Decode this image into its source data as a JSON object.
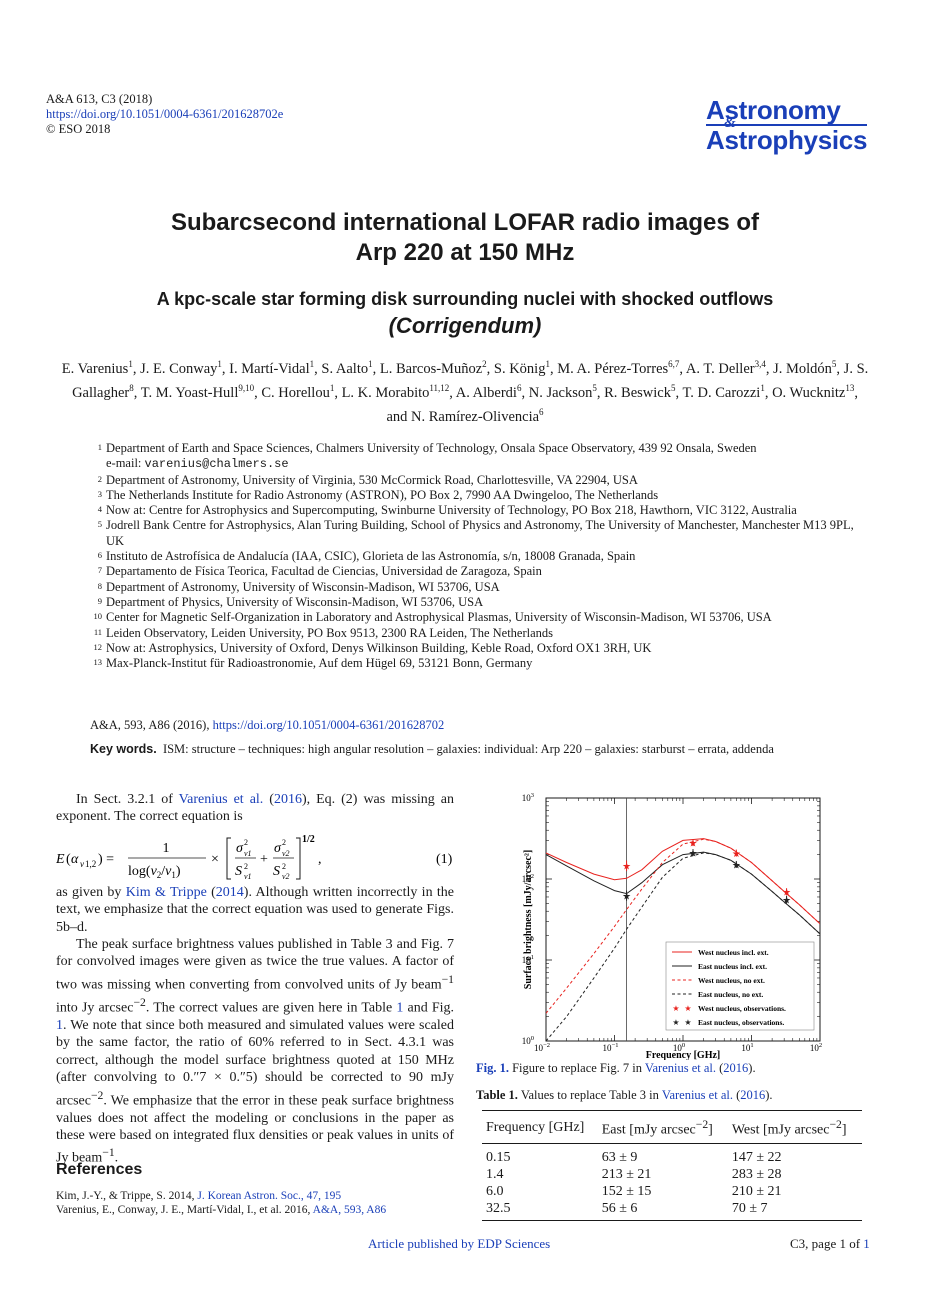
{
  "header": {
    "journal_ref": "A&A 613,  C3 (2018)",
    "doi": "https://doi.org/10.1051/0004-6361/201628702e",
    "copyright": "© ESO 2018",
    "logo_line1": "Astronomy",
    "logo_amp": "&",
    "logo_line2": "Astrophysics"
  },
  "title_line1": "Subarcsecond international LOFAR radio images of",
  "title_line2": "Arp 220 at 150 MHz",
  "subtitle": "A kpc-scale star forming disk surrounding nuclei with shocked outflows",
  "corrigendum": "(Corrigendum)",
  "authors": [
    {
      "name": "E. Varenius",
      "aff": "1"
    },
    {
      "name": "J. E. Conway",
      "aff": "1"
    },
    {
      "name": "I. Martí-Vidal",
      "aff": "1"
    },
    {
      "name": "S. Aalto",
      "aff": "1"
    },
    {
      "name": "L. Barcos-Muñoz",
      "aff": "2"
    },
    {
      "name": "S. König",
      "aff": "1"
    },
    {
      "name": "M. A. Pérez-Torres",
      "aff": "6,7"
    },
    {
      "name": "A. T. Deller",
      "aff": "3,4"
    },
    {
      "name": "J. Moldón",
      "aff": "5"
    },
    {
      "name": "J. S. Gallagher",
      "aff": "8"
    },
    {
      "name": "T. M. Yoast-Hull",
      "aff": "9,10"
    },
    {
      "name": "C. Horellou",
      "aff": "1"
    },
    {
      "name": "L. K. Morabito",
      "aff": "11,12"
    },
    {
      "name": "A. Alberdi",
      "aff": "6"
    },
    {
      "name": "N. Jackson",
      "aff": "5"
    },
    {
      "name": "R. Beswick",
      "aff": "5"
    },
    {
      "name": "T. D. Carozzi",
      "aff": "1"
    },
    {
      "name": "O. Wucknitz",
      "aff": "13"
    },
    {
      "name": "N. Ramírez-Olivencia",
      "aff": "6"
    }
  ],
  "authors_and": "and",
  "affiliations": [
    {
      "num": "1",
      "text": "Department of Earth and Space Sciences, Chalmers University of Technology, Onsala Space Observatory, 439 92 Onsala, Sweden",
      "email_label": "e-mail:",
      "email": "varenius@chalmers.se"
    },
    {
      "num": "2",
      "text": "Department of Astronomy, University of Virginia, 530 McCormick Road, Charlottesville, VA 22904, USA"
    },
    {
      "num": "3",
      "text": "The Netherlands Institute for Radio Astronomy (ASTRON), PO Box 2, 7990 AA Dwingeloo, The Netherlands"
    },
    {
      "num": "4",
      "text": "Now at: Centre for Astrophysics and Supercomputing, Swinburne University of Technology, PO Box 218, Hawthorn, VIC 3122, Australia"
    },
    {
      "num": "5",
      "text": "Jodrell Bank Centre for Astrophysics, Alan Turing Building, School of Physics and Astronomy, The University of Manchester, Manchester M13 9PL, UK"
    },
    {
      "num": "6",
      "text": "Instituto de Astrofísica de Andalucía (IAA, CSIC), Glorieta de las Astronomía, s/n, 18008 Granada, Spain"
    },
    {
      "num": "7",
      "text": "Departamento de Física Teorica, Facultad de Ciencias, Universidad de Zaragoza, Spain"
    },
    {
      "num": "8",
      "text": "Department of Astronomy, University of Wisconsin-Madison, WI 53706, USA"
    },
    {
      "num": "9",
      "text": "Department of Physics, University of Wisconsin-Madison, WI 53706, USA"
    },
    {
      "num": "10",
      "text": "Center for Magnetic Self-Organization in Laboratory and Astrophysical Plasmas, University of Wisconsin-Madison, WI 53706, USA"
    },
    {
      "num": "11",
      "text": "Leiden Observatory, Leiden University, PO Box 9513, 2300 RA Leiden, The Netherlands"
    },
    {
      "num": "12",
      "text": "Now at: Astrophysics, University of Oxford, Denys Wilkinson Building, Keble Road, Oxford OX1 3RH, UK"
    },
    {
      "num": "13",
      "text": "Max-Planck-Institut für Radioastronomie, Auf dem Hügel 69, 53121 Bonn, Germany"
    }
  ],
  "original_ref": {
    "text": "A&A, 593, A86 (2016), ",
    "link": "https://doi.org/10.1051/0004-6361/201628702"
  },
  "keywords": {
    "label": "Key words.",
    "text": "ISM: structure – techniques: high angular resolution – galaxies: individual: Arp 220 – galaxies: starburst – errata, addenda"
  },
  "body": {
    "p1_a": "In Sect. 3.2.1 of ",
    "p1_link": "Varenius et al.",
    "p1_paren_open": " (",
    "p1_year": "2016",
    "p1_b": "), Eq. (2) was missing an exponent. The correct equation is",
    "eq_number": "(1)",
    "p2_a": "as given by ",
    "p2_link": "Kim & Trippe",
    "p2_paren_open": " (",
    "p2_year": "2014",
    "p2_b": "). Although written incorrectly in the text, we emphasize that the correct equation was used to generate Figs. 5b–d.",
    "p3_a": "The peak surface brightness values published in Table 3 and Fig. 7 for convolved images were given as twice the true values. A factor of two was missing when converting from convolved units of Jy beam",
    "p3_b": " into Jy arcsec",
    "p3_c": ". The correct values are given here in Table ",
    "p3_table_link": "1",
    "p3_d": " and Fig. ",
    "p3_fig_link": "1",
    "p3_e": ". We note that since both measured and simulated values were scaled by the same factor, the ratio of 60% referred to in Sect. 4.3.1 was correct, although the model surface brightness quoted at 150 MHz (after convolving to 0.″7 × 0.″5) should be corrected to 90 mJy arcsec",
    "p3_f": ". We emphasize that the error in these peak surface brightness values does not affect the modeling or conclusions in the paper as these were based on integrated flux densities or peak values in units of Jy beam",
    "p3_g": ".",
    "exp_m1": "−1",
    "exp_m2": "−2"
  },
  "references": {
    "heading": "References",
    "items": [
      {
        "text": "Kim, J.-Y., & Trippe, S. 2014, ",
        "link": "J. Korean Astron. Soc., 47, 195"
      },
      {
        "text": "Varenius, E., Conway, J. E., Martí-Vidal, I., et al. 2016, ",
        "link": "A&A, 593, A86"
      }
    ]
  },
  "figure": {
    "caption_label": "Fig. 1.",
    "caption_text": " Figure to replace Fig. 7 in ",
    "caption_link": "Varenius et al.",
    "caption_year": "2016",
    "caption_end": ")."
  },
  "chart_data": {
    "type": "line",
    "xlabel": "Frequency [GHz]",
    "ylabel": "Surface brightness [mJy/arcsec²]",
    "x_scale": "log",
    "y_scale": "log",
    "xlim": [
      0.01,
      100
    ],
    "ylim": [
      1,
      1000
    ],
    "x_ticks": [
      {
        "value": 0.01,
        "base": "10",
        "exp": "−2"
      },
      {
        "value": 0.1,
        "base": "10",
        "exp": "−1"
      },
      {
        "value": 1,
        "base": "10",
        "exp": "0"
      },
      {
        "value": 10,
        "base": "10",
        "exp": "1"
      },
      {
        "value": 100,
        "base": "10",
        "exp": "2"
      }
    ],
    "y_ticks": [
      {
        "value": 1,
        "base": "10",
        "exp": "0"
      },
      {
        "value": 10,
        "base": "10",
        "exp": "1"
      },
      {
        "value": 100,
        "base": "10",
        "exp": "2"
      },
      {
        "value": 1000,
        "base": "10",
        "exp": "3"
      }
    ],
    "vertical_line_x": 0.15,
    "legend_position": "lower-right",
    "series": [
      {
        "name": "West nucleus incl. ext.",
        "color": "#e8231f",
        "style": "solid",
        "x": [
          0.01,
          0.02,
          0.05,
          0.1,
          0.15,
          0.25,
          0.5,
          1,
          2,
          3,
          5,
          10,
          20,
          30,
          50,
          100
        ],
        "y": [
          210,
          160,
          115,
          98,
          102,
          130,
          220,
          300,
          315,
          290,
          240,
          160,
          95,
          70,
          48,
          28
        ]
      },
      {
        "name": "East nucleus incl. ext.",
        "color": "#222222",
        "style": "solid",
        "x": [
          0.01,
          0.02,
          0.05,
          0.1,
          0.15,
          0.25,
          0.5,
          1,
          2,
          3,
          5,
          10,
          20,
          30,
          50,
          100
        ],
        "y": [
          200,
          145,
          95,
          72,
          66,
          90,
          150,
          200,
          215,
          200,
          170,
          115,
          70,
          52,
          36,
          21
        ]
      },
      {
        "name": "West nucleus, no ext.",
        "color": "#e8231f",
        "style": "dashed",
        "x": [
          0.01,
          0.02,
          0.05,
          0.1,
          0.15,
          0.25,
          0.5,
          1,
          2,
          3,
          5,
          10,
          20,
          30,
          50,
          100
        ],
        "y": [
          2.2,
          4.5,
          12,
          26,
          42,
          75,
          160,
          270,
          310,
          290,
          240,
          160,
          95,
          70,
          48,
          28
        ]
      },
      {
        "name": "East nucleus, no ext.",
        "color": "#222222",
        "style": "dashed",
        "x": [
          0.01,
          0.02,
          0.05,
          0.1,
          0.15,
          0.25,
          0.5,
          1,
          2,
          3,
          5,
          10,
          20,
          30,
          50,
          100
        ],
        "y": [
          1,
          2,
          6,
          14,
          24,
          45,
          105,
          180,
          210,
          200,
          170,
          115,
          70,
          52,
          36,
          21
        ]
      },
      {
        "name": "West nucleus, observations.",
        "color": "#e8231f",
        "style": "points",
        "x": [
          0.15,
          1.4,
          6.0,
          32.5
        ],
        "y": [
          147,
          283,
          210,
          70
        ],
        "err": [
          22,
          28,
          21,
          7
        ]
      },
      {
        "name": "East nucleus, observations.",
        "color": "#222222",
        "style": "points",
        "x": [
          0.15,
          1.4,
          6.0,
          32.5
        ],
        "y": [
          63,
          213,
          152,
          56
        ],
        "err": [
          9,
          21,
          15,
          6
        ]
      }
    ]
  },
  "table": {
    "caption_label": "Table 1.",
    "caption_text": " Values to replace Table 3 in ",
    "caption_link": "Varenius et al.",
    "caption_year": "2016",
    "caption_end": ").",
    "headers": [
      "Frequency [GHz]",
      "East [mJy arcsec",
      "West [mJy arcsec"
    ],
    "header_exp": "−2",
    "rows": [
      [
        "0.15",
        "63 ± 9",
        "147 ± 22"
      ],
      [
        "1.4",
        "213 ± 21",
        "283 ± 28"
      ],
      [
        "6.0",
        "152 ± 15",
        "210 ± 21"
      ],
      [
        "32.5",
        "56 ± 6",
        "70 ± 7"
      ]
    ]
  },
  "footer": {
    "publisher": "Article published by EDP Sciences",
    "page_prefix": "C3, page 1 of ",
    "page_total": "1"
  }
}
